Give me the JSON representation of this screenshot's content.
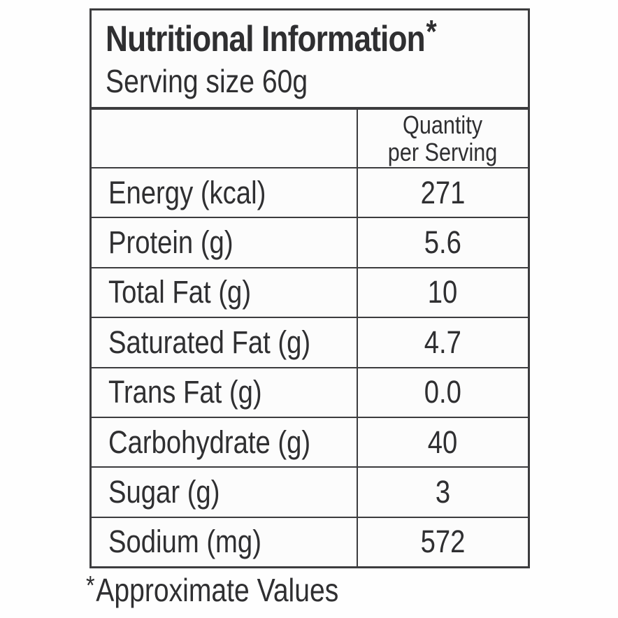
{
  "label": {
    "title": "Nutritional Information",
    "title_asterisk": "*",
    "subtitle": "Serving size 60g",
    "column_header": {
      "line1": "Quantity",
      "line2": "per Serving"
    },
    "rows": [
      {
        "label": "Energy (kcal)",
        "value": "271"
      },
      {
        "label": "Protein (g)",
        "value": "5.6"
      },
      {
        "label": "Total Fat (g)",
        "value": "10"
      },
      {
        "label": "Saturated Fat (g)",
        "value": "4.7"
      },
      {
        "label": "Trans Fat (g)",
        "value": "0.0"
      },
      {
        "label": "Carbohydrate (g)",
        "value": "40"
      },
      {
        "label": "Sugar (g)",
        "value": "3"
      },
      {
        "label": "Sodium (mg)",
        "value": "572"
      }
    ],
    "footnote_asterisk": "*",
    "footnote": "Approximate Values"
  },
  "colors": {
    "border": "#3c3c3e",
    "text": "#2f2f31",
    "background": "#fefefe"
  }
}
